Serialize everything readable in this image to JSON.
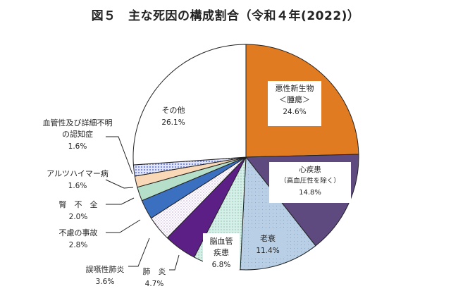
{
  "chart_data": {
    "type": "pie",
    "title": "図５　主な死因の構成割合（令和４年(2022)）",
    "start": "12 o'clock",
    "direction": "clockwise",
    "slices": [
      {
        "label": "悪性新生物＜腫瘍＞",
        "lines": [
          "悪性新生物",
          "＜腫瘍＞"
        ],
        "pct_label": "24.6%",
        "value": 24.6,
        "color": "#e07b22"
      },
      {
        "label": "心疾患（高血圧性を除く）",
        "lines": [
          "心疾患",
          "（高血圧性を除く）"
        ],
        "pct_label": "14.8%",
        "value": 14.8,
        "color": "#5e4a7e"
      },
      {
        "label": "老衰",
        "lines": [
          "老衰"
        ],
        "pct_label": "11.4%",
        "value": 11.4,
        "color": "#b8cfe6"
      },
      {
        "label": "脳血管疾患",
        "lines": [
          "脳血管",
          "疾患"
        ],
        "pct_label": "6.8%",
        "value": 6.8,
        "color": "#d5efe8"
      },
      {
        "label": "肺炎",
        "lines": [
          "肺　炎"
        ],
        "pct_label": "4.7%",
        "value": 4.7,
        "color": "#5b1f86"
      },
      {
        "label": "誤嚥性肺炎",
        "lines": [
          "誤嚥性肺炎"
        ],
        "pct_label": "3.6%",
        "value": 3.6,
        "color": "#f2eef8"
      },
      {
        "label": "不慮の事故",
        "lines": [
          "不慮の事故"
        ],
        "pct_label": "2.8%",
        "value": 2.8,
        "color": "#3b6fbf"
      },
      {
        "label": "腎不全",
        "lines": [
          "腎　不　全"
        ],
        "pct_label": "2.0%",
        "value": 2.0,
        "color": "#b5dfc9"
      },
      {
        "label": "アルツハイマー病",
        "lines": [
          "アルツハイマー病"
        ],
        "pct_label": "1.6%",
        "value": 1.6,
        "color": "#f8d8b6"
      },
      {
        "label": "血管性及び詳細不明の認知症",
        "lines": [
          "血管性及び詳細不明",
          "の認知症"
        ],
        "pct_label": "1.6%",
        "value": 1.6,
        "color": "#cfd6f0"
      },
      {
        "label": "その他",
        "lines": [
          "その他"
        ],
        "pct_label": "26.1%",
        "value": 26.1,
        "color": "#ffffff"
      }
    ]
  }
}
